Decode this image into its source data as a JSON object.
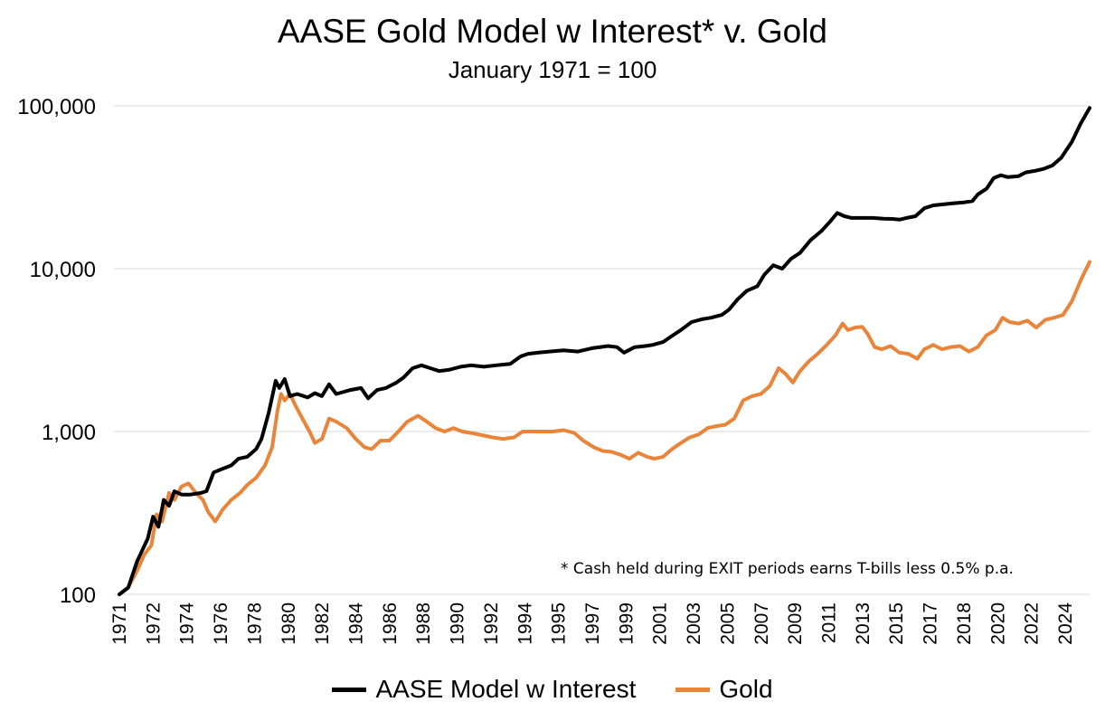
{
  "chart_data": {
    "type": "line",
    "title": "AASE Gold Model w Interest* v. Gold",
    "subtitle": "January 1971 = 100",
    "annotation": "* Cash held during EXIT periods earns T-bills less 0.5% p.a.",
    "y_scale": "log",
    "ylim": [
      100,
      100000
    ],
    "y_ticks": [
      "100",
      "1,000",
      "10,000",
      "100,000"
    ],
    "x_tick_labels": [
      "1971",
      "1972",
      "1974",
      "1976",
      "1978",
      "1980",
      "1982",
      "1984",
      "1986",
      "1988",
      "1990",
      "1992",
      "1994",
      "1995",
      "1997",
      "1999",
      "2001",
      "2003",
      "2005",
      "2007",
      "2009",
      "2011",
      "2013",
      "2015",
      "2017",
      "2018",
      "2020",
      "2022",
      "2024"
    ],
    "xlim": [
      1971.0,
      2025.6
    ],
    "grid": "horizontal",
    "legend_position": "bottom",
    "series": [
      {
        "name": "AASE Model w Interest",
        "color": "#000000",
        "points": [
          [
            1971.0,
            100
          ],
          [
            1971.5,
            110
          ],
          [
            1972.0,
            160
          ],
          [
            1972.6,
            220
          ],
          [
            1972.9,
            300
          ],
          [
            1973.2,
            260
          ],
          [
            1973.5,
            380
          ],
          [
            1973.8,
            350
          ],
          [
            1974.1,
            430
          ],
          [
            1974.5,
            410
          ],
          [
            1975.0,
            410
          ],
          [
            1975.6,
            420
          ],
          [
            1975.9,
            430
          ],
          [
            1976.3,
            560
          ],
          [
            1976.8,
            590
          ],
          [
            1977.3,
            620
          ],
          [
            1977.7,
            680
          ],
          [
            1978.2,
            700
          ],
          [
            1978.7,
            780
          ],
          [
            1979.0,
            900
          ],
          [
            1979.4,
            1300
          ],
          [
            1979.8,
            2050
          ],
          [
            1980.0,
            1850
          ],
          [
            1980.3,
            2100
          ],
          [
            1980.6,
            1650
          ],
          [
            1981.0,
            1700
          ],
          [
            1981.6,
            1620
          ],
          [
            1982.0,
            1720
          ],
          [
            1982.4,
            1650
          ],
          [
            1982.8,
            1950
          ],
          [
            1983.2,
            1700
          ],
          [
            1984.0,
            1800
          ],
          [
            1984.6,
            1850
          ],
          [
            1985.0,
            1600
          ],
          [
            1985.5,
            1800
          ],
          [
            1986.0,
            1850
          ],
          [
            1986.6,
            2000
          ],
          [
            1987.0,
            2150
          ],
          [
            1987.5,
            2450
          ],
          [
            1988.0,
            2550
          ],
          [
            1988.5,
            2450
          ],
          [
            1989.0,
            2350
          ],
          [
            1989.6,
            2400
          ],
          [
            1990.2,
            2500
          ],
          [
            1990.8,
            2550
          ],
          [
            1991.5,
            2500
          ],
          [
            1992.2,
            2550
          ],
          [
            1993.0,
            2600
          ],
          [
            1993.6,
            2900
          ],
          [
            1994.0,
            3000
          ],
          [
            1994.6,
            3050
          ],
          [
            1995.2,
            3100
          ],
          [
            1996.0,
            3150
          ],
          [
            1996.8,
            3100
          ],
          [
            1997.6,
            3250
          ],
          [
            1998.5,
            3350
          ],
          [
            1999.0,
            3300
          ],
          [
            1999.4,
            3050
          ],
          [
            2000.0,
            3300
          ],
          [
            2000.6,
            3350
          ],
          [
            2001.0,
            3400
          ],
          [
            2001.6,
            3550
          ],
          [
            2002.0,
            3800
          ],
          [
            2002.6,
            4200
          ],
          [
            2003.2,
            4700
          ],
          [
            2003.8,
            4900
          ],
          [
            2004.3,
            5000
          ],
          [
            2004.9,
            5200
          ],
          [
            2005.3,
            5600
          ],
          [
            2005.8,
            6500
          ],
          [
            2006.3,
            7300
          ],
          [
            2006.9,
            7800
          ],
          [
            2007.3,
            9200
          ],
          [
            2007.8,
            10500
          ],
          [
            2008.3,
            10000
          ],
          [
            2008.8,
            11500
          ],
          [
            2009.3,
            12500
          ],
          [
            2009.9,
            15000
          ],
          [
            2010.5,
            17000
          ],
          [
            2011.0,
            19500
          ],
          [
            2011.4,
            22000
          ],
          [
            2011.8,
            21000
          ],
          [
            2012.2,
            20500
          ],
          [
            2012.8,
            20500
          ],
          [
            2013.4,
            20500
          ],
          [
            2014.0,
            20300
          ],
          [
            2014.5,
            20200
          ],
          [
            2014.9,
            20000
          ],
          [
            2015.3,
            20500
          ],
          [
            2015.8,
            21000
          ],
          [
            2016.3,
            23500
          ],
          [
            2016.8,
            24500
          ],
          [
            2017.3,
            24800
          ],
          [
            2017.9,
            25200
          ],
          [
            2018.5,
            25500
          ],
          [
            2019.0,
            26000
          ],
          [
            2019.3,
            28500
          ],
          [
            2019.8,
            31000
          ],
          [
            2020.2,
            36000
          ],
          [
            2020.6,
            37500
          ],
          [
            2021.0,
            36500
          ],
          [
            2021.6,
            37000
          ],
          [
            2022.0,
            39000
          ],
          [
            2022.6,
            40000
          ],
          [
            2023.0,
            41000
          ],
          [
            2023.5,
            43000
          ],
          [
            2024.0,
            48000
          ],
          [
            2024.6,
            60000
          ],
          [
            2025.1,
            78000
          ],
          [
            2025.6,
            97000
          ]
        ]
      },
      {
        "name": "Gold",
        "color": "#E8853A",
        "points": [
          [
            1971.0,
            100
          ],
          [
            1971.5,
            110
          ],
          [
            1972.0,
            140
          ],
          [
            1972.4,
            175
          ],
          [
            1972.8,
            200
          ],
          [
            1973.1,
            310
          ],
          [
            1973.4,
            280
          ],
          [
            1973.8,
            420
          ],
          [
            1974.1,
            380
          ],
          [
            1974.5,
            460
          ],
          [
            1974.9,
            480
          ],
          [
            1975.3,
            420
          ],
          [
            1975.7,
            380
          ],
          [
            1976.0,
            320
          ],
          [
            1976.4,
            280
          ],
          [
            1976.8,
            330
          ],
          [
            1977.3,
            380
          ],
          [
            1977.8,
            420
          ],
          [
            1978.2,
            470
          ],
          [
            1978.7,
            520
          ],
          [
            1979.2,
            620
          ],
          [
            1979.6,
            800
          ],
          [
            1979.9,
            1350
          ],
          [
            1980.1,
            1700
          ],
          [
            1980.3,
            1550
          ],
          [
            1980.6,
            1700
          ],
          [
            1980.9,
            1450
          ],
          [
            1981.3,
            1200
          ],
          [
            1981.7,
            1000
          ],
          [
            1982.0,
            850
          ],
          [
            1982.4,
            900
          ],
          [
            1982.8,
            1200
          ],
          [
            1983.2,
            1150
          ],
          [
            1983.8,
            1050
          ],
          [
            1984.3,
            900
          ],
          [
            1984.8,
            800
          ],
          [
            1985.2,
            780
          ],
          [
            1985.7,
            880
          ],
          [
            1986.2,
            880
          ],
          [
            1986.7,
            1000
          ],
          [
            1987.2,
            1150
          ],
          [
            1987.8,
            1250
          ],
          [
            1988.3,
            1150
          ],
          [
            1988.8,
            1050
          ],
          [
            1989.3,
            1000
          ],
          [
            1989.8,
            1050
          ],
          [
            1990.3,
            1000
          ],
          [
            1990.8,
            980
          ],
          [
            1991.4,
            950
          ],
          [
            1992.0,
            920
          ],
          [
            1992.6,
            900
          ],
          [
            1993.2,
            920
          ],
          [
            1993.7,
            1000
          ],
          [
            1994.2,
            1000
          ],
          [
            1994.8,
            1000
          ],
          [
            1995.4,
            1000
          ],
          [
            1996.0,
            1020
          ],
          [
            1996.6,
            980
          ],
          [
            1997.1,
            880
          ],
          [
            1997.7,
            800
          ],
          [
            1998.2,
            760
          ],
          [
            1998.7,
            750
          ],
          [
            1999.2,
            720
          ],
          [
            1999.7,
            680
          ],
          [
            2000.2,
            740
          ],
          [
            2000.7,
            700
          ],
          [
            2001.1,
            680
          ],
          [
            2001.6,
            700
          ],
          [
            2002.1,
            780
          ],
          [
            2002.6,
            850
          ],
          [
            2003.1,
            920
          ],
          [
            2003.6,
            960
          ],
          [
            2004.1,
            1050
          ],
          [
            2004.6,
            1080
          ],
          [
            2005.1,
            1100
          ],
          [
            2005.6,
            1200
          ],
          [
            2006.1,
            1550
          ],
          [
            2006.6,
            1650
          ],
          [
            2007.1,
            1700
          ],
          [
            2007.6,
            1900
          ],
          [
            2008.1,
            2450
          ],
          [
            2008.5,
            2250
          ],
          [
            2008.9,
            2000
          ],
          [
            2009.3,
            2350
          ],
          [
            2009.8,
            2700
          ],
          [
            2010.3,
            3000
          ],
          [
            2010.8,
            3400
          ],
          [
            2011.3,
            3900
          ],
          [
            2011.7,
            4600
          ],
          [
            2012.0,
            4200
          ],
          [
            2012.4,
            4350
          ],
          [
            2012.8,
            4400
          ],
          [
            2013.1,
            4000
          ],
          [
            2013.5,
            3300
          ],
          [
            2013.9,
            3200
          ],
          [
            2014.4,
            3350
          ],
          [
            2014.9,
            3050
          ],
          [
            2015.4,
            3000
          ],
          [
            2015.9,
            2800
          ],
          [
            2016.3,
            3200
          ],
          [
            2016.8,
            3400
          ],
          [
            2017.3,
            3200
          ],
          [
            2017.8,
            3300
          ],
          [
            2018.3,
            3350
          ],
          [
            2018.8,
            3100
          ],
          [
            2019.3,
            3300
          ],
          [
            2019.8,
            3900
          ],
          [
            2020.3,
            4200
          ],
          [
            2020.7,
            5000
          ],
          [
            2021.1,
            4700
          ],
          [
            2021.6,
            4600
          ],
          [
            2022.1,
            4800
          ],
          [
            2022.6,
            4350
          ],
          [
            2023.1,
            4850
          ],
          [
            2023.6,
            5000
          ],
          [
            2024.1,
            5200
          ],
          [
            2024.6,
            6300
          ],
          [
            2025.1,
            8500
          ],
          [
            2025.6,
            11000
          ]
        ]
      }
    ]
  }
}
